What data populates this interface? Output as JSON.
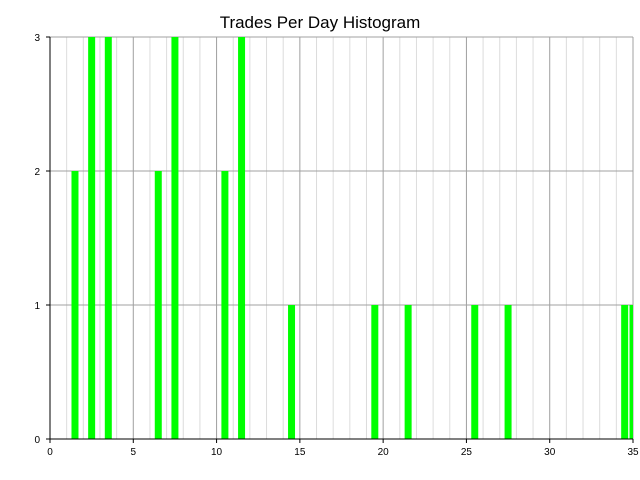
{
  "chart_data": {
    "type": "bar",
    "title": "Trades Per Day Histogram",
    "xlabel": "",
    "ylabel": "",
    "xlim": [
      0,
      35
    ],
    "ylim": [
      0,
      3
    ],
    "x_ticks": [
      0,
      5,
      10,
      15,
      20,
      25,
      30,
      35
    ],
    "y_ticks": [
      0,
      1,
      2,
      3
    ],
    "grid": true,
    "legend": "none",
    "bar_color": "#00ff00",
    "bins": [
      {
        "x": 1.5,
        "value": 2
      },
      {
        "x": 2.5,
        "value": 3
      },
      {
        "x": 3.5,
        "value": 3
      },
      {
        "x": 6.5,
        "value": 2
      },
      {
        "x": 7.5,
        "value": 3
      },
      {
        "x": 10.5,
        "value": 2
      },
      {
        "x": 11.5,
        "value": 3
      },
      {
        "x": 14.5,
        "value": 1
      },
      {
        "x": 19.5,
        "value": 1
      },
      {
        "x": 21.5,
        "value": 1
      },
      {
        "x": 25.5,
        "value": 1
      },
      {
        "x": 27.5,
        "value": 1
      },
      {
        "x": 34.5,
        "value": 1
      },
      {
        "x": 35.0,
        "value": 1
      }
    ]
  }
}
